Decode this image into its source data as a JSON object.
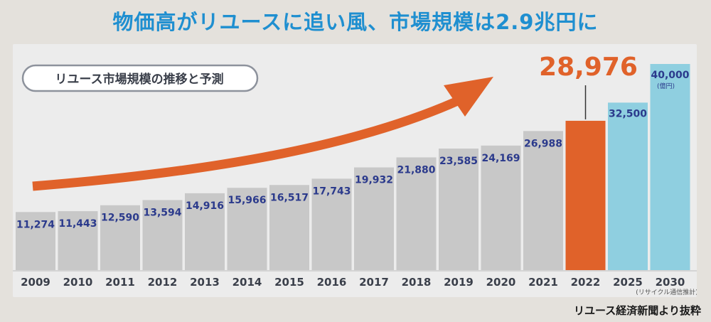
{
  "headline": "物価高がリユースに追い風、市場規模は2.9兆円に",
  "source_note": "リユース経済新聞より抜粋",
  "colors": {
    "headline": "#1f8fd0",
    "bar_gray": "#c8c8c8",
    "bar_highlight": "#e0622a",
    "bar_forecast": "#8fcfe0",
    "value_text": "#2b3a8c",
    "highlight_text": "#e0622a",
    "arrow": "#e0622a"
  },
  "chart_data": {
    "type": "bar",
    "title": "リユース市場規模の推移と予測",
    "unit_note": "(億円)",
    "forecast_note": "(リサイクル通信推計)",
    "categories": [
      "2009",
      "2010",
      "2011",
      "2012",
      "2013",
      "2014",
      "2015",
      "2016",
      "2017",
      "2018",
      "2019",
      "2020",
      "2021",
      "2022",
      "2025",
      "2030"
    ],
    "values": [
      11274,
      11443,
      12590,
      13594,
      14916,
      15966,
      16517,
      17743,
      19932,
      21880,
      23585,
      24169,
      26988,
      28976,
      32500,
      40000
    ],
    "value_labels": [
      "11,274",
      "11,443",
      "12,590",
      "13,594",
      "14,916",
      "15,966",
      "16,517",
      "17,743",
      "19,932",
      "21,880",
      "23,585",
      "24,169",
      "26,988",
      "28,976",
      "32,500",
      "40,000"
    ],
    "bar_kinds": [
      "actual",
      "actual",
      "actual",
      "actual",
      "actual",
      "actual",
      "actual",
      "actual",
      "actual",
      "actual",
      "actual",
      "actual",
      "actual",
      "highlight",
      "forecast",
      "forecast"
    ],
    "highlight_category": "2022",
    "ylim": [
      0,
      40000
    ],
    "grid": false,
    "legend": "none"
  }
}
